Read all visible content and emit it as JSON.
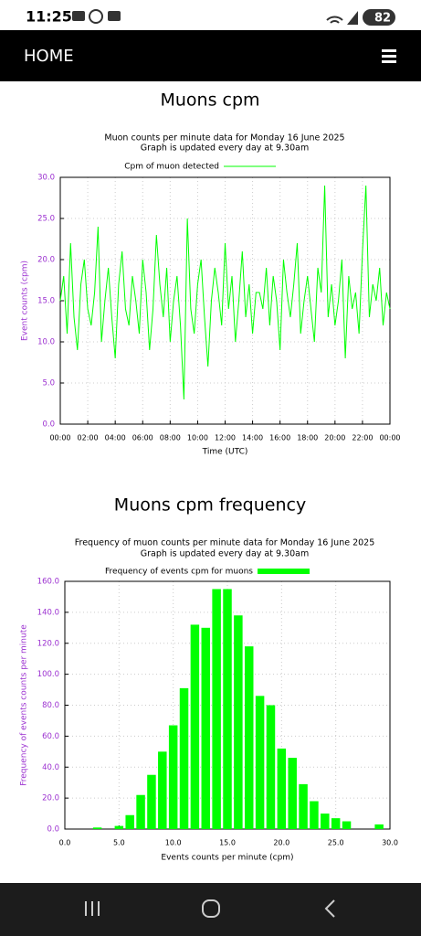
{
  "status_bar": {
    "time": "11:25",
    "battery": "82"
  },
  "header": {
    "title": "HOME"
  },
  "headings": [
    "Muons cpm",
    "Muons cpm frequency"
  ],
  "chart_data": [
    {
      "type": "line",
      "title": "Muon counts per minute data for Monday 16 June 2025",
      "subtitle": "Graph is updated every day at 9.30am",
      "x_label": "Time (UTC)",
      "y_label": "Event counts (cpm)",
      "x": [
        0,
        0.25,
        0.5,
        0.75,
        1,
        1.25,
        1.5,
        1.75,
        2,
        2.25,
        2.5,
        2.75,
        3,
        3.25,
        3.5,
        3.75,
        4,
        4.25,
        4.5,
        4.75,
        5,
        5.25,
        5.5,
        5.75,
        6,
        6.25,
        6.5,
        6.75,
        7,
        7.25,
        7.5,
        7.75,
        8,
        8.25,
        8.5,
        8.75,
        9,
        9.25,
        9.5,
        9.75,
        10,
        10.25,
        10.5,
        10.75,
        11,
        11.25,
        11.5,
        11.75,
        12,
        12.25,
        12.5,
        12.75,
        13,
        13.25,
        13.5,
        13.75,
        14,
        14.25,
        14.5,
        14.75,
        15,
        15.25,
        15.5,
        15.75,
        16,
        16.25,
        16.5,
        16.75,
        17,
        17.25,
        17.5,
        17.75,
        18,
        18.25,
        18.5,
        18.75,
        19,
        19.25,
        19.5,
        19.75,
        20,
        20.25,
        20.5,
        20.75,
        21,
        21.25,
        21.5,
        21.75,
        22,
        22.25,
        22.5,
        22.75,
        23,
        23.25,
        23.5,
        23.75,
        24
      ],
      "series": [
        {
          "name": "Cpm of muon detected",
          "color": "#00ff00",
          "values": [
            15,
            18,
            11,
            22,
            13,
            9,
            17,
            20,
            14,
            12,
            16,
            24,
            10,
            15,
            19,
            13,
            8,
            17,
            21,
            14,
            12,
            18,
            15,
            11,
            20,
            16,
            9,
            14,
            23,
            17,
            13,
            19,
            10,
            15,
            18,
            12,
            3,
            25,
            14,
            11,
            17,
            20,
            13,
            7,
            15,
            19,
            16,
            12,
            22,
            14,
            18,
            10,
            15,
            21,
            13,
            17,
            11,
            16,
            16,
            14,
            19,
            12,
            18,
            15,
            9,
            20,
            16,
            13,
            17,
            22,
            11,
            15,
            18,
            14,
            10,
            19,
            16,
            29,
            13,
            17,
            12,
            15,
            20,
            8,
            18,
            14,
            16,
            11,
            21,
            29,
            13,
            17,
            15,
            19,
            12,
            16,
            14
          ]
        }
      ],
      "xlim": [
        0,
        24
      ],
      "xticks": [
        {
          "value": 0,
          "label": "00:00"
        },
        {
          "value": 2,
          "label": "02:00"
        },
        {
          "value": 4,
          "label": "04:00"
        },
        {
          "value": 6,
          "label": "06:00"
        },
        {
          "value": 8,
          "label": "08:00"
        },
        {
          "value": 10,
          "label": "10:00"
        },
        {
          "value": 12,
          "label": "12:00"
        },
        {
          "value": 14,
          "label": "14:00"
        },
        {
          "value": 16,
          "label": "16:00"
        },
        {
          "value": 18,
          "label": "18:00"
        },
        {
          "value": 20,
          "label": "20:00"
        },
        {
          "value": 22,
          "label": "22:00"
        },
        {
          "value": 24,
          "label": "00:00"
        }
      ],
      "ylim": [
        0,
        30
      ],
      "yticks": [
        {
          "value": 0,
          "label": "0.0"
        },
        {
          "value": 5,
          "label": "5.0"
        },
        {
          "value": 10,
          "label": "10.0"
        },
        {
          "value": 15,
          "label": "15.0"
        },
        {
          "value": 20,
          "label": "20.0"
        },
        {
          "value": 25,
          "label": "25.0"
        },
        {
          "value": 30,
          "label": "30.0"
        }
      ],
      "grid": true
    },
    {
      "type": "histogram",
      "title": "Frequency of muon counts per minute data for Monday 16 June 2025",
      "subtitle": "Graph is updated every day at 9.30am",
      "x_label": "Events counts per minute (cpm)",
      "y_label": "Frequency of events counts per minute",
      "bins": [
        2.5,
        3.5,
        4.5,
        5.5,
        6.5,
        7.5,
        8.5,
        9.5,
        10.5,
        11.5,
        12.5,
        13.5,
        14.5,
        15.5,
        16.5,
        17.5,
        18.5,
        19.5,
        20.5,
        21.5,
        22.5,
        23.5,
        24.5,
        25.5,
        26.5,
        27.5,
        28.5,
        29.5
      ],
      "series": [
        {
          "name": "Frequency of events cpm for muons",
          "color": "#00ff00",
          "values": [
            1,
            0,
            2,
            9,
            22,
            35,
            50,
            67,
            91,
            132,
            130,
            155,
            155,
            138,
            118,
            86,
            80,
            52,
            46,
            29,
            18,
            10,
            7,
            5,
            0,
            0,
            3
          ]
        }
      ],
      "xlim": [
        0,
        30
      ],
      "xticks": [
        {
          "value": 0,
          "label": "0.0"
        },
        {
          "value": 5,
          "label": "5.0"
        },
        {
          "value": 10,
          "label": "10.0"
        },
        {
          "value": 15,
          "label": "15.0"
        },
        {
          "value": 20,
          "label": "20.0"
        },
        {
          "value": 25,
          "label": "25.0"
        },
        {
          "value": 30,
          "label": "30.0"
        }
      ],
      "ylim": [
        0,
        160
      ],
      "yticks": [
        {
          "value": 0,
          "label": "0.0"
        },
        {
          "value": 20,
          "label": "20.0"
        },
        {
          "value": 40,
          "label": "40.0"
        },
        {
          "value": 60,
          "label": "60.0"
        },
        {
          "value": 80,
          "label": "80.0"
        },
        {
          "value": 100,
          "label": "100.0"
        },
        {
          "value": 120,
          "label": "120.0"
        },
        {
          "value": 140,
          "label": "140.0"
        },
        {
          "value": 160,
          "label": "160.0"
        }
      ],
      "grid": true
    }
  ]
}
